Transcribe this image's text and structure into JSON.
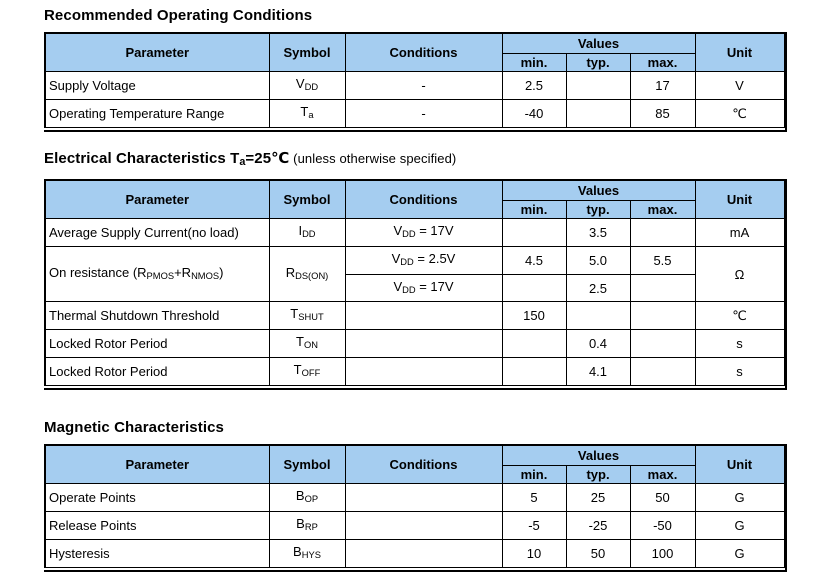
{
  "colors": {
    "page_bg": "#ffffff",
    "header_bg": "#a5cdf0",
    "border": "#000000",
    "text": "#000000"
  },
  "headers": {
    "parameter": "Parameter",
    "symbol": "Symbol",
    "conditions": "Conditions",
    "values": "Values",
    "min": "min.",
    "typ": "typ.",
    "max": "max.",
    "unit": "Unit"
  },
  "sections": [
    {
      "id": "recommended-operating-conditions",
      "title": [
        {
          "t": "Recommended Operating Conditions"
        }
      ],
      "rows": [
        {
          "parameter": [
            {
              "t": "Supply Voltage"
            }
          ],
          "symbol": [
            {
              "t": "V"
            },
            {
              "t": "DD",
              "sub": true
            }
          ],
          "unit": "V",
          "entries": [
            {
              "conditions": [
                {
                  "t": "-"
                }
              ],
              "min": "2.5",
              "typ": "",
              "max": "17"
            }
          ]
        },
        {
          "parameter": [
            {
              "t": "Operating Temperature Range"
            }
          ],
          "symbol": [
            {
              "t": "T"
            },
            {
              "t": "a",
              "sub": true
            }
          ],
          "unit": "℃",
          "entries": [
            {
              "conditions": [
                {
                  "t": "-"
                }
              ],
              "min": "-40",
              "typ": "",
              "max": "85"
            }
          ]
        }
      ]
    },
    {
      "id": "electrical-characteristics",
      "title": [
        {
          "t": "Electrical Characteristics T"
        },
        {
          "t": "a",
          "sub": true
        },
        {
          "t": "=25℃"
        },
        {
          "t": " (unless otherwise specified)",
          "normal": true
        }
      ],
      "rows": [
        {
          "parameter": [
            {
              "t": "Average Supply Current(no load)"
            }
          ],
          "symbol": [
            {
              "t": "I"
            },
            {
              "t": "DD",
              "sub": true
            }
          ],
          "unit": "mA",
          "entries": [
            {
              "conditions": [
                {
                  "t": "V"
                },
                {
                  "t": "DD",
                  "sub": true
                },
                {
                  "t": " = 17V"
                }
              ],
              "min": "",
              "typ": "3.5",
              "max": ""
            }
          ]
        },
        {
          "parameter": [
            {
              "t": "On resistance (R"
            },
            {
              "t": "PMOS",
              "sub": true
            },
            {
              "t": "+R"
            },
            {
              "t": "NMOS",
              "sub": true
            },
            {
              "t": ")"
            }
          ],
          "symbol": [
            {
              "t": "R"
            },
            {
              "t": "DS(ON)",
              "sub": true
            }
          ],
          "unit": "Ω",
          "entries": [
            {
              "conditions": [
                {
                  "t": "V"
                },
                {
                  "t": "DD",
                  "sub": true
                },
                {
                  "t": " = 2.5V"
                }
              ],
              "min": "4.5",
              "typ": "5.0",
              "max": "5.5"
            },
            {
              "conditions": [
                {
                  "t": "V"
                },
                {
                  "t": "DD",
                  "sub": true
                },
                {
                  "t": " = 17V"
                }
              ],
              "min": "",
              "typ": "2.5",
              "max": ""
            }
          ]
        },
        {
          "parameter": [
            {
              "t": "Thermal Shutdown Threshold"
            }
          ],
          "symbol": [
            {
              "t": "T"
            },
            {
              "t": "SHUT",
              "sub": true
            }
          ],
          "unit": "℃",
          "entries": [
            {
              "conditions": [],
              "min": "150",
              "typ": "",
              "max": ""
            }
          ]
        },
        {
          "parameter": [
            {
              "t": "Locked Rotor Period"
            }
          ],
          "symbol": [
            {
              "t": "T"
            },
            {
              "t": "ON",
              "sub": true
            }
          ],
          "unit": "s",
          "entries": [
            {
              "conditions": [],
              "min": "",
              "typ": "0.4",
              "max": ""
            }
          ]
        },
        {
          "parameter": [
            {
              "t": "Locked Rotor Period"
            }
          ],
          "symbol": [
            {
              "t": "T"
            },
            {
              "t": "OFF",
              "sub": true
            }
          ],
          "unit": "s",
          "entries": [
            {
              "conditions": [],
              "min": "",
              "typ": "4.1",
              "max": ""
            }
          ]
        }
      ]
    },
    {
      "id": "magnetic-characteristics",
      "title": [
        {
          "t": "Magnetic Characteristics"
        }
      ],
      "rows": [
        {
          "parameter": [
            {
              "t": "Operate Points"
            }
          ],
          "symbol": [
            {
              "t": "B"
            },
            {
              "t": "OP",
              "sub": true
            }
          ],
          "unit": "G",
          "entries": [
            {
              "conditions": [],
              "min": "5",
              "typ": "25",
              "max": "50"
            }
          ]
        },
        {
          "parameter": [
            {
              "t": "Release Points"
            }
          ],
          "symbol": [
            {
              "t": "B"
            },
            {
              "t": "RP",
              "sub": true
            }
          ],
          "unit": "G",
          "entries": [
            {
              "conditions": [],
              "min": "-5",
              "typ": "-25",
              "max": "-50"
            }
          ]
        },
        {
          "parameter": [
            {
              "t": "Hysteresis"
            }
          ],
          "symbol": [
            {
              "t": "B"
            },
            {
              "t": "HYS",
              "sub": true
            }
          ],
          "unit": "G",
          "entries": [
            {
              "conditions": [],
              "min": "10",
              "typ": "50",
              "max": "100"
            }
          ]
        }
      ]
    }
  ]
}
